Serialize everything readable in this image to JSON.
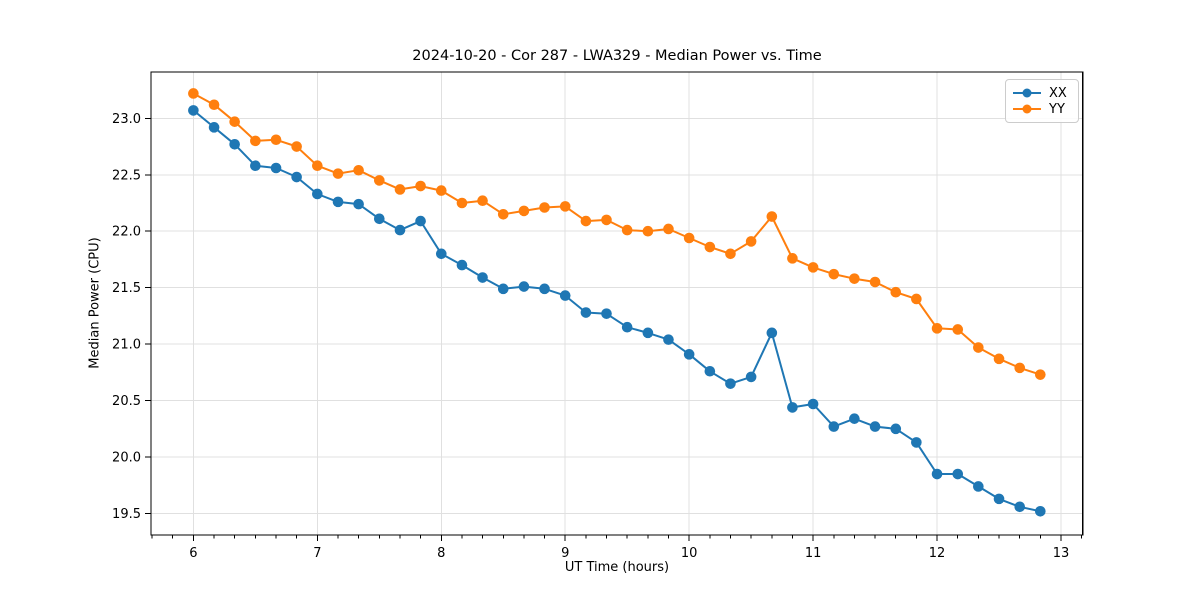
{
  "chart_data": {
    "type": "line",
    "title": "2024-10-20 - Cor 287 - LWA329 - Median Power vs. Time",
    "xlabel": "UT Time (hours)",
    "ylabel": "Median Power (CPU)",
    "x": [
      6.0,
      6.167,
      6.333,
      6.5,
      6.667,
      6.833,
      7.0,
      7.167,
      7.333,
      7.5,
      7.667,
      7.833,
      8.0,
      8.167,
      8.333,
      8.5,
      8.667,
      8.833,
      9.0,
      9.167,
      9.333,
      9.5,
      9.667,
      9.833,
      10.0,
      10.167,
      10.333,
      10.5,
      10.667,
      10.833,
      11.0,
      11.167,
      11.333,
      11.5,
      11.667,
      11.833,
      12.0,
      12.167,
      12.333,
      12.5,
      12.667,
      12.833
    ],
    "series": [
      {
        "name": "XX",
        "color": "#1f77b4",
        "values": [
          23.07,
          22.92,
          22.77,
          22.58,
          22.56,
          22.48,
          22.33,
          22.26,
          22.24,
          22.11,
          22.01,
          22.09,
          21.8,
          21.7,
          21.59,
          21.49,
          21.51,
          21.49,
          21.43,
          21.28,
          21.27,
          21.15,
          21.1,
          21.04,
          20.91,
          20.76,
          20.65,
          20.71,
          21.1,
          20.44,
          20.47,
          20.27,
          20.34,
          20.27,
          20.25,
          20.13,
          19.85,
          19.85,
          19.74,
          19.63,
          19.56,
          19.52
        ]
      },
      {
        "name": "YY",
        "color": "#ff7f0e",
        "values": [
          23.22,
          23.12,
          22.97,
          22.8,
          22.81,
          22.75,
          22.58,
          22.51,
          22.54,
          22.45,
          22.37,
          22.4,
          22.36,
          22.25,
          22.27,
          22.15,
          22.18,
          22.21,
          22.22,
          22.09,
          22.1,
          22.01,
          22.0,
          22.02,
          21.94,
          21.86,
          21.8,
          21.91,
          22.13,
          21.76,
          21.68,
          21.62,
          21.58,
          21.55,
          21.46,
          21.4,
          21.14,
          21.13,
          20.97,
          20.87,
          20.79,
          20.73
        ]
      }
    ],
    "xlim": [
      5.658,
      13.175
    ],
    "ylim": [
      19.31,
      23.41
    ],
    "xticks": [
      6,
      7,
      8,
      9,
      10,
      11,
      12,
      13
    ],
    "yticks": [
      19.5,
      20.0,
      20.5,
      21.0,
      21.5,
      22.0,
      22.5,
      23.0
    ],
    "x_minor_tick_step": 0.1667,
    "marker": "o",
    "grid": true,
    "legend_position": "upper right",
    "grid_color": "#e0e0e0",
    "spine_color": "#000000",
    "background_color": "#ffffff"
  }
}
